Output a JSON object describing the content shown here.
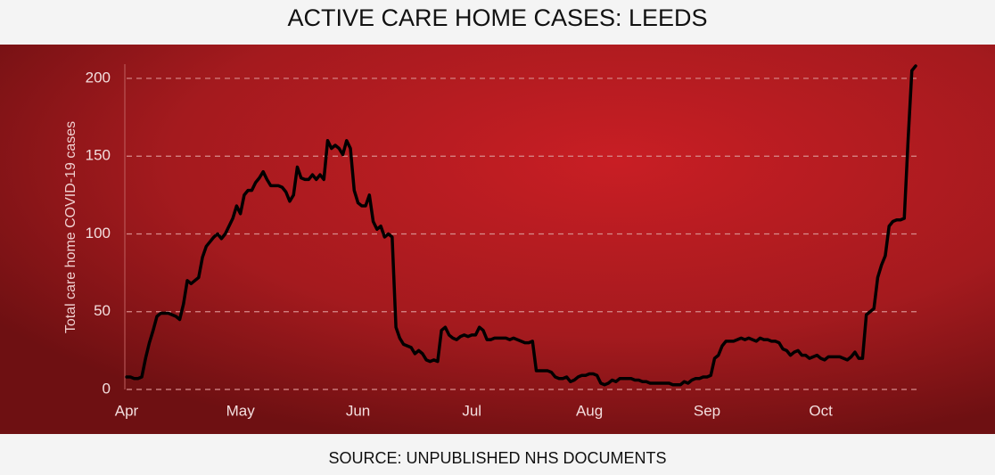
{
  "chart_data": {
    "type": "line",
    "title": "ACTIVE CARE HOME CASES: LEEDS",
    "y_label": "Total care home COVID-19 cases",
    "source": "SOURCE: UNPUBLISHED NHS DOCUMENTS",
    "categories": [
      "Apr",
      null,
      null,
      null,
      null,
      null,
      null,
      null,
      null,
      null,
      null,
      null,
      null,
      null,
      null,
      null,
      null,
      null,
      null,
      null,
      null,
      null,
      null,
      null,
      null,
      null,
      null,
      null,
      null,
      null,
      "May",
      null,
      null,
      null,
      null,
      null,
      null,
      null,
      null,
      null,
      null,
      null,
      null,
      null,
      null,
      null,
      null,
      null,
      null,
      null,
      null,
      null,
      null,
      null,
      null,
      null,
      null,
      null,
      null,
      null,
      null,
      "Jun",
      null,
      null,
      null,
      null,
      null,
      null,
      null,
      null,
      null,
      null,
      null,
      null,
      null,
      null,
      null,
      null,
      null,
      null,
      null,
      null,
      null,
      null,
      null,
      null,
      null,
      null,
      null,
      null,
      null,
      "Jul",
      null,
      null,
      null,
      null,
      null,
      null,
      null,
      null,
      null,
      null,
      null,
      null,
      null,
      null,
      null,
      null,
      null,
      null,
      null,
      null,
      null,
      null,
      null,
      null,
      null,
      null,
      null,
      null,
      null,
      null,
      "Aug",
      null,
      null,
      null,
      null,
      null,
      null,
      null,
      null,
      null,
      null,
      null,
      null,
      null,
      null,
      null,
      null,
      null,
      null,
      null,
      null,
      null,
      null,
      null,
      null,
      null,
      null,
      null,
      null,
      null,
      null,
      "Sep",
      null,
      null,
      null,
      null,
      null,
      null,
      null,
      null,
      null,
      null,
      null,
      null,
      null,
      null,
      null,
      null,
      null,
      null,
      null,
      null,
      null,
      null,
      null,
      null,
      null,
      null,
      null,
      null,
      null,
      "Oct",
      null,
      null,
      null,
      null,
      null,
      null,
      null,
      null,
      null,
      null,
      null,
      null,
      null,
      null,
      null,
      null,
      null,
      null,
      null,
      null,
      null,
      null,
      null,
      null,
      null
    ],
    "values": [
      8,
      8,
      7,
      7,
      8,
      20,
      30,
      38,
      47,
      49,
      49,
      49,
      48,
      47,
      45,
      55,
      70,
      68,
      70,
      72,
      85,
      92,
      95,
      98,
      100,
      97,
      100,
      105,
      110,
      118,
      113,
      125,
      128,
      128,
      133,
      136,
      140,
      135,
      131,
      131,
      131,
      130,
      127,
      121,
      125,
      143,
      136,
      135,
      135,
      138,
      135,
      138,
      135,
      160,
      155,
      157,
      155,
      151,
      160,
      155,
      128,
      120,
      118,
      118,
      125,
      108,
      103,
      105,
      98,
      100,
      98,
      40,
      33,
      29,
      28,
      27,
      23,
      25,
      23,
      19,
      18,
      19,
      18,
      38,
      40,
      35,
      33,
      32,
      34,
      35,
      34,
      35,
      35,
      40,
      38,
      32,
      32,
      33,
      33,
      33,
      33,
      32,
      33,
      32,
      31,
      30,
      30,
      31,
      12,
      12,
      12,
      12,
      11,
      8,
      7,
      7,
      8,
      5,
      6,
      8,
      9,
      9,
      10,
      10,
      9,
      4,
      3,
      4,
      6,
      5,
      7,
      7,
      7,
      7,
      6,
      6,
      5,
      5,
      4,
      4,
      4,
      4,
      4,
      4,
      3,
      3,
      3,
      5,
      4,
      6,
      7,
      7,
      8,
      8,
      9,
      20,
      22,
      28,
      31,
      31,
      31,
      32,
      33,
      32,
      33,
      32,
      31,
      33,
      32,
      32,
      31,
      31,
      30,
      26,
      25,
      22,
      24,
      25,
      22,
      22,
      20,
      21,
      22,
      20,
      19,
      21,
      21,
      21,
      21,
      20,
      19,
      21,
      24,
      20,
      20,
      48,
      50,
      52,
      72,
      80,
      86,
      105,
      108,
      109,
      109,
      110,
      160,
      205,
      208
    ],
    "color": "#000000",
    "ylim": [
      0,
      210
    ],
    "yticks": [
      0,
      50,
      100,
      150,
      200
    ],
    "grid": true
  }
}
